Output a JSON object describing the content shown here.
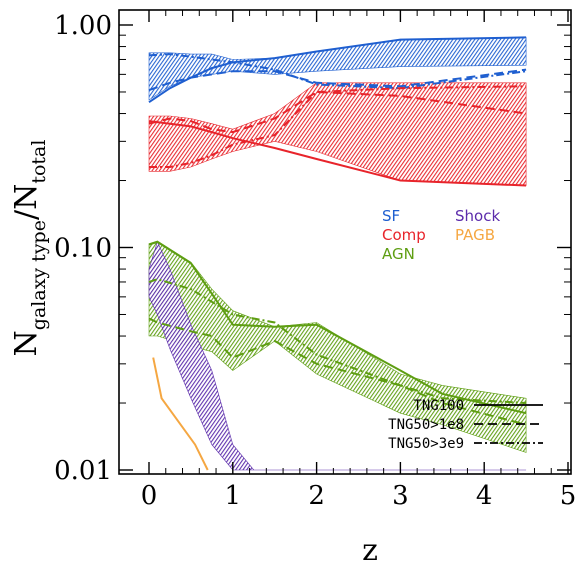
{
  "chart_data": {
    "type": "line",
    "xlabel": "z",
    "ylabel_main": "N",
    "ylabel_sub1": "galaxy type",
    "ylabel_sep": "/N",
    "ylabel_sub2": "total",
    "xlim": [
      0,
      5
    ],
    "ylim": [
      0.01,
      1.1
    ],
    "yscale": "log",
    "x_ticks": [
      {
        "value": 0,
        "label": "0"
      },
      {
        "value": 1,
        "label": "1"
      },
      {
        "value": 2,
        "label": "2"
      },
      {
        "value": 3,
        "label": "3"
      },
      {
        "value": 4,
        "label": "4"
      },
      {
        "value": 5,
        "label": "5"
      }
    ],
    "y_ticks": [
      {
        "value": 1.0,
        "label": "1.00"
      },
      {
        "value": 0.1,
        "label": "0.10"
      },
      {
        "value": 0.01,
        "label": "0.01"
      }
    ],
    "legend_types": [
      {
        "name": "SF",
        "color": "#1f5fd0"
      },
      {
        "name": "Shock",
        "color": "#5b2bab"
      },
      {
        "name": "Comp",
        "color": "#e8242b"
      },
      {
        "name": "PAGB",
        "color": "#f5a742"
      },
      {
        "name": "AGN",
        "color": "#5e9e12"
      }
    ],
    "legend_lines": [
      {
        "name": "TNG100",
        "dash": ""
      },
      {
        "name": "TNG50>1e8",
        "dash": "9,5"
      },
      {
        "name": "TNG50>3e9",
        "dash": "8,3,2,3"
      }
    ],
    "bands": [
      {
        "type": "SF",
        "color": "#1f5fd0",
        "x": [
          0.0,
          0.25,
          0.5,
          0.75,
          1.0,
          1.5,
          2.0,
          3.0,
          4.5
        ],
        "upper": [
          0.75,
          0.75,
          0.74,
          0.74,
          0.7,
          0.71,
          0.76,
          0.86,
          0.88
        ],
        "lower": [
          0.46,
          0.53,
          0.58,
          0.6,
          0.62,
          0.6,
          0.62,
          0.65,
          0.66
        ],
        "lines": {
          "TNG100": [
            0.45,
            0.52,
            0.58,
            0.64,
            0.68,
            0.71,
            0.76,
            0.86,
            0.88
          ],
          "TNG50>1e8": [
            0.51,
            0.55,
            0.58,
            0.6,
            0.62,
            0.62,
            0.55,
            0.53,
            0.63
          ],
          "TNG50>3e9": [
            0.73,
            0.74,
            0.72,
            0.7,
            0.68,
            0.63,
            0.54,
            0.52,
            0.62
          ]
        }
      },
      {
        "type": "Comp",
        "color": "#e8242b",
        "x": [
          0.0,
          0.25,
          0.5,
          0.75,
          1.0,
          1.5,
          2.0,
          3.0,
          4.5
        ],
        "upper": [
          0.39,
          0.39,
          0.38,
          0.36,
          0.34,
          0.4,
          0.55,
          0.55,
          0.55
        ],
        "lower": [
          0.22,
          0.22,
          0.23,
          0.25,
          0.27,
          0.3,
          0.27,
          0.2,
          0.19
        ],
        "lines": {
          "TNG100": [
            0.37,
            0.36,
            0.35,
            0.33,
            0.31,
            0.28,
            0.25,
            0.2,
            0.19
          ],
          "TNG50>1e8": [
            0.36,
            0.38,
            0.37,
            0.34,
            0.33,
            0.38,
            0.5,
            0.48,
            0.4
          ],
          "TNG50>3e9": [
            0.23,
            0.23,
            0.24,
            0.26,
            0.29,
            0.32,
            0.5,
            0.52,
            0.53
          ]
        }
      },
      {
        "type": "AGN",
        "color": "#5e9e12",
        "x": [
          0.0,
          0.1,
          0.5,
          0.75,
          1.0,
          1.5,
          2.0,
          3.0,
          3.5,
          4.5
        ],
        "upper": [
          0.104,
          0.107,
          0.086,
          0.065,
          0.052,
          0.044,
          0.046,
          0.027,
          0.024,
          0.021
        ],
        "lower": [
          0.04,
          0.04,
          0.036,
          0.034,
          0.028,
          0.038,
          0.027,
          0.018,
          0.016,
          0.012
        ],
        "lines": {
          "TNG100": [
            0.103,
            0.106,
            0.085,
            0.062,
            0.045,
            0.044,
            0.045,
            0.028,
            0.022,
            0.018
          ],
          "TNG50>1e8": [
            0.048,
            0.046,
            0.042,
            0.04,
            0.032,
            0.038,
            0.03,
            0.024,
            0.02,
            0.016
          ],
          "TNG50>3e9": [
            0.07,
            0.072,
            0.065,
            0.057,
            0.05,
            0.046,
            0.033,
            0.024,
            0.021,
            0.02
          ]
        }
      },
      {
        "type": "Shock",
        "color": "#5b2bab",
        "x": [
          0.0,
          0.1,
          0.25,
          0.5,
          0.75,
          1.0,
          1.25,
          1.5,
          2.0,
          3.0,
          4.5
        ],
        "upper": [
          0.08,
          0.106,
          0.08,
          0.045,
          0.028,
          0.013,
          0.01,
          0.01,
          0.01,
          0.01,
          0.01
        ],
        "lower": [
          0.06,
          0.05,
          0.035,
          0.021,
          0.013,
          0.01,
          0.01,
          0.01,
          0.01,
          0.01,
          0.01
        ],
        "lines": {}
      }
    ],
    "pagb_line": {
      "type": "PAGB",
      "color": "#f5a742",
      "x": [
        0.05,
        0.15,
        0.55,
        0.7
      ],
      "y": [
        0.032,
        0.021,
        0.013,
        0.01
      ]
    }
  }
}
